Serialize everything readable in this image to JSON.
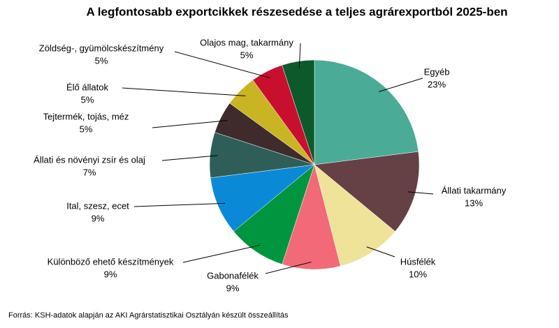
{
  "chart_data": {
    "type": "pie",
    "title": "A legfontosabb exportcikkek részesedése a teljes agrárexportból 2025-ben",
    "source": "Forrás: KSH-adatok alapján az AKI Agrárstatisztikai Osztályán készült összeállítás",
    "categories": [
      "Egyéb",
      "Állati takarmány",
      "Húsfélék",
      "Gabonafélék",
      "Különböző ehető készítmények",
      "Ital, szesz, ecet",
      "Állati és növényi zsír és olaj",
      "Tejtermék, tojás, méz",
      "Élő állatok",
      "Zöldség-, gyümölcskészítmény",
      "Olajos mag, takarmány"
    ],
    "values": [
      23,
      13,
      10,
      9,
      9,
      9,
      7,
      5,
      5,
      5,
      5
    ],
    "value_labels": [
      "23%",
      "13%",
      "10%",
      "9%",
      "9%",
      "9%",
      "7%",
      "5%",
      "5%",
      "5%",
      "5%"
    ],
    "colors": [
      "#4aab97",
      "#654045",
      "#efe39a",
      "#f26a78",
      "#00953f",
      "#0a8ad6",
      "#2e5e57",
      "#3f2a2c",
      "#c9b422",
      "#c8102e",
      "#0c5a2b"
    ]
  }
}
